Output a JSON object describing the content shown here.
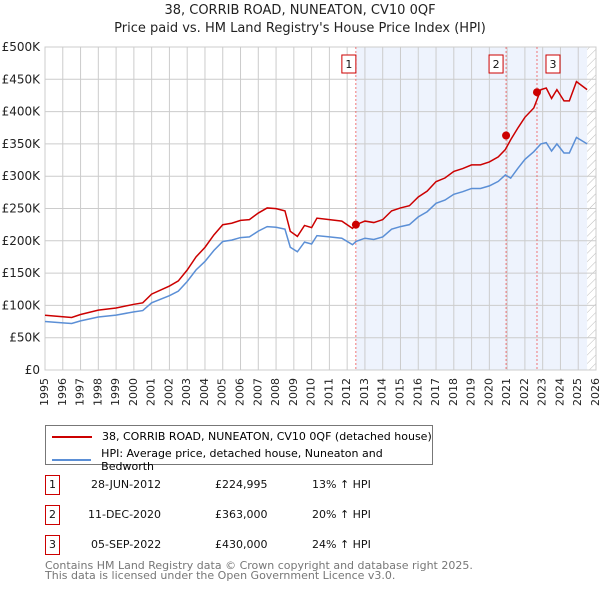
{
  "chart_data": {
    "type": "line",
    "title": "38, CORRIB ROAD, NUNEATON, CV10 0QF",
    "subtitle": "Price paid vs. HM Land Registry's House Price Index (HPI)",
    "xlim": [
      1995,
      2026
    ],
    "ylim": [
      0,
      500000
    ],
    "x_ticks": [
      "1995",
      "1996",
      "1997",
      "1998",
      "1999",
      "2000",
      "2001",
      "2002",
      "2003",
      "2004",
      "2005",
      "2006",
      "2007",
      "2008",
      "2009",
      "2010",
      "2011",
      "2012",
      "2013",
      "2014",
      "2015",
      "2016",
      "2017",
      "2018",
      "2019",
      "2020",
      "2021",
      "2022",
      "2023",
      "2024",
      "2025",
      "2026"
    ],
    "y_ticks": [
      "£0",
      "£50K",
      "£100K",
      "£150K",
      "£200K",
      "£250K",
      "£300K",
      "£350K",
      "£400K",
      "£450K",
      "£500K"
    ],
    "shaded_from": 2012.49,
    "hatched_from": 2025.5,
    "series": [
      {
        "name": "38, CORRIB ROAD, NUNEATON, CV10 0QF (detached house)",
        "color": "#cc0000",
        "derived_from_hpi": true,
        "factors": [
          [
            1995,
            1.13
          ],
          [
            2020.94,
            1.2
          ],
          [
            2022.68,
            1.24
          ]
        ]
      },
      {
        "name": "HPI: Average price, detached house, Nuneaton and Bedworth",
        "color": "#5b8fd6",
        "x": [
          1995,
          1996,
          1996.5,
          1997,
          1998,
          1999,
          2000,
          2000.5,
          2001,
          2002,
          2002.5,
          2003,
          2003.5,
          2004,
          2004.5,
          2005,
          2005.5,
          2006,
          2006.5,
          2007,
          2007.5,
          2008,
          2008.5,
          2008.8,
          2009.2,
          2009.6,
          2010,
          2010.3,
          2011,
          2011.7,
          2012.3,
          2012.5,
          2013,
          2013.5,
          2014,
          2014.5,
          2015,
          2015.5,
          2016,
          2016.5,
          2017,
          2017.5,
          2018,
          2018.5,
          2019,
          2019.5,
          2020,
          2020.5,
          2020.9,
          2021.2,
          2021.6,
          2022,
          2022.5,
          2022.9,
          2023.2,
          2023.5,
          2023.8,
          2024.2,
          2024.5,
          2024.9,
          2025.2,
          2025.5
        ],
        "y": [
          75000,
          73000,
          72000,
          76000,
          82000,
          85000,
          90000,
          92000,
          104000,
          115000,
          122000,
          137000,
          155000,
          168000,
          185000,
          199000,
          201000,
          205000,
          206000,
          215000,
          222000,
          221000,
          218000,
          190000,
          183000,
          198000,
          195000,
          208000,
          206000,
          204000,
          194000,
          199000,
          204000,
          202000,
          206000,
          218000,
          222000,
          225000,
          237000,
          245000,
          258000,
          263000,
          272000,
          276000,
          281000,
          281000,
          285000,
          292000,
          302000,
          297000,
          312000,
          326000,
          338000,
          350000,
          352000,
          339000,
          350000,
          336000,
          336000,
          360000,
          355000,
          350000
        ]
      }
    ],
    "sales": [
      {
        "n": "1",
        "date": "28-JUN-2012",
        "x": 2012.49,
        "price": "£224,995",
        "value": 224995,
        "hpi": "13% ↑ HPI"
      },
      {
        "n": "2",
        "date": "11-DEC-2020",
        "x": 2020.94,
        "price": "£363,000",
        "value": 363000,
        "hpi": "20% ↑ HPI"
      },
      {
        "n": "3",
        "date": "05-SEP-2022",
        "x": 2022.68,
        "price": "£430,000",
        "value": 430000,
        "hpi": "24% ↑ HPI"
      }
    ],
    "legend_placement": "below"
  },
  "footer": {
    "line1": "Contains HM Land Registry data © Crown copyright and database right 2025.",
    "line2": "This data is licensed under the Open Government Licence v3.0."
  }
}
